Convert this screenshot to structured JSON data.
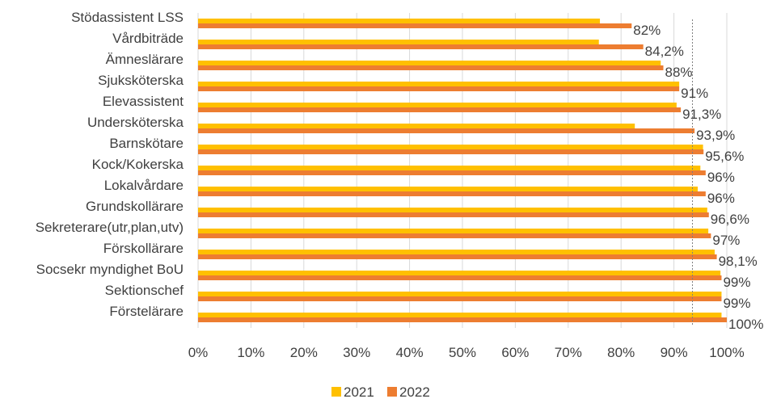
{
  "chart_data": {
    "type": "bar",
    "orientation": "horizontal",
    "categories": [
      "Stödassistent LSS",
      "Vårdbiträde",
      "Ämneslärare",
      "Sjuksköterska",
      "Elevassistent",
      "Undersköterska",
      "Barnskötare",
      "Kock/Kokerska",
      "Lokalvårdare",
      "Grundskollärare",
      "Sekreterare(utr,plan,utv)",
      "Förskollärare",
      "Socsekr myndighet BoU",
      "Sektionschef",
      "Förstelärare"
    ],
    "series": [
      {
        "name": "2021",
        "color": "#FFC000",
        "values": [
          0.76,
          0.758,
          0.875,
          0.91,
          0.905,
          0.826,
          0.955,
          0.95,
          0.945,
          0.963,
          0.965,
          0.977,
          0.988,
          0.99,
          0.99
        ]
      },
      {
        "name": "2022",
        "color": "#ED7D31",
        "values": [
          0.82,
          0.842,
          0.88,
          0.91,
          0.913,
          0.939,
          0.956,
          0.96,
          0.96,
          0.966,
          0.97,
          0.981,
          0.99,
          0.99,
          1.0
        ]
      }
    ],
    "data_labels": [
      "82%",
      "84,2%",
      "88%",
      "91%",
      "91,3%",
      "93,9%",
      "95,6%",
      "96%",
      "96%",
      "96,6%",
      "97%",
      "98,1%",
      "99%",
      "99%",
      "100%"
    ],
    "reference_line": 0.935,
    "xlim": [
      0,
      1
    ],
    "xticks": [
      "0%",
      "10%",
      "20%",
      "30%",
      "40%",
      "50%",
      "60%",
      "70%",
      "80%",
      "90%",
      "100%"
    ],
    "grid": true,
    "legend": {
      "position": "bottom",
      "entries": [
        "2021",
        "2022"
      ]
    },
    "title": "",
    "xlabel": "",
    "ylabel": ""
  }
}
